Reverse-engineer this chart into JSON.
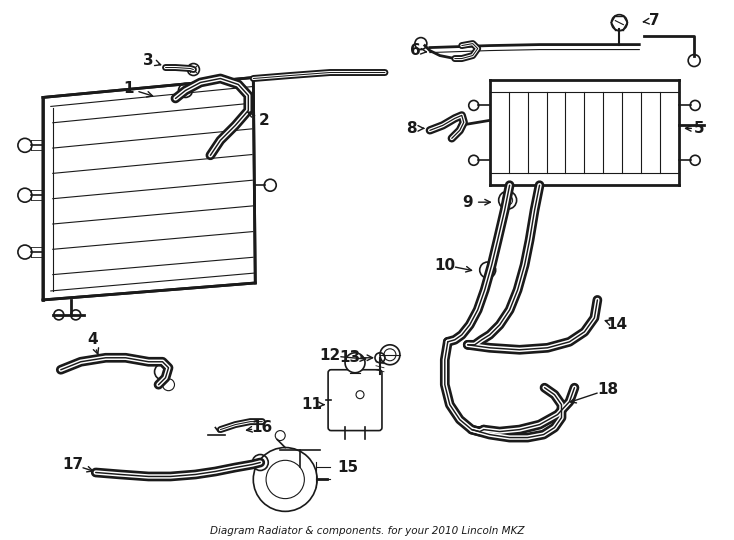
{
  "title": "Diagram Radiator & components. for your 2010 Lincoln MKZ",
  "bg_color": "#ffffff",
  "line_color": "#1a1a1a",
  "fig_width": 7.34,
  "fig_height": 5.4,
  "dpi": 100
}
